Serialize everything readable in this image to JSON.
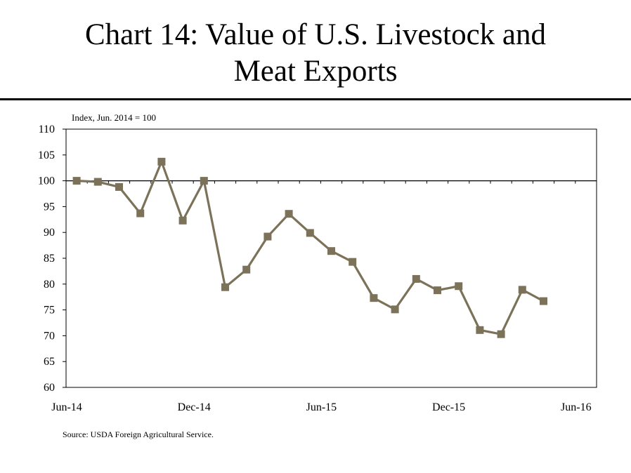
{
  "title": {
    "line1": "Chart 14: Value of U.S. Livestock and",
    "line2": "Meat Exports"
  },
  "source": "Source: USDA Foreign Agricultural Service.",
  "chart_data": {
    "type": "line",
    "ylabel": "Index, Jun. 2014 = 100",
    "ylim": [
      60,
      110
    ],
    "yticks": [
      60,
      65,
      70,
      75,
      80,
      85,
      90,
      95,
      100,
      105,
      110
    ],
    "xticks": [
      "Jun-14",
      "Dec-14",
      "Jun-15",
      "Dec-15",
      "Jun-16"
    ],
    "reference_line": 100,
    "grid": false,
    "series_color": "#7b7259",
    "x": [
      "Jun-14",
      "Jul-14",
      "Aug-14",
      "Sep-14",
      "Oct-14",
      "Nov-14",
      "Dec-14",
      "Jan-15",
      "Feb-15",
      "Mar-15",
      "Apr-15",
      "May-15",
      "Jun-15",
      "Jul-15",
      "Aug-15",
      "Sep-15",
      "Oct-15",
      "Nov-15",
      "Dec-15",
      "Jan-16",
      "Feb-16",
      "Mar-16",
      "Apr-16"
    ],
    "series": [
      {
        "values": [
          100,
          99.8,
          98.8,
          93.7,
          103.7,
          92.3,
          100,
          79.4,
          82.8,
          89.2,
          93.6,
          89.9,
          86.4,
          84.3,
          77.3,
          75.1,
          81.0,
          78.8,
          79.6,
          71.1,
          70.3,
          78.9,
          76.7
        ]
      }
    ]
  }
}
